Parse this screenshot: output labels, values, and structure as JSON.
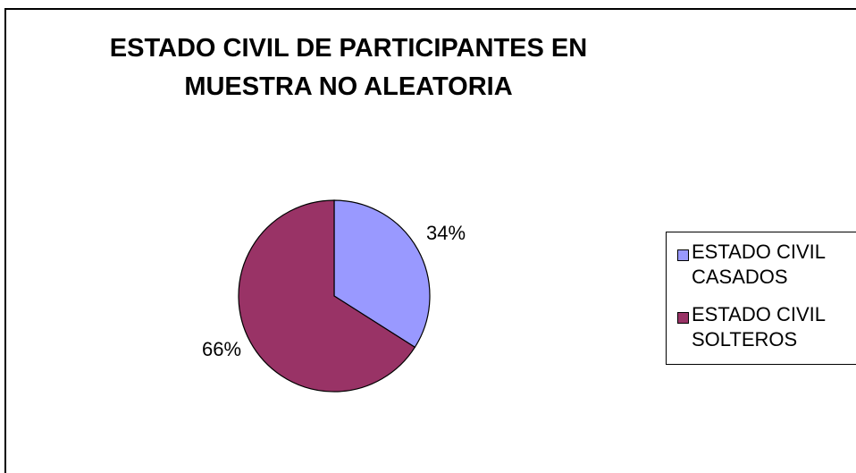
{
  "chart_data": {
    "type": "pie",
    "title_lines": [
      "ESTADO CIVIL DE PARTICIPANTES EN",
      "MUESTRA NO ALEATORIA"
    ],
    "slices": [
      {
        "legend_lines": [
          "ESTADO CIVIL",
          "CASADOS"
        ],
        "value": 34,
        "label": "34%",
        "color": "#9999FF"
      },
      {
        "legend_lines": [
          "ESTADO CIVIL",
          "SOLTEROS"
        ],
        "value": 66,
        "label": "66%",
        "color": "#993366"
      }
    ],
    "legend_position": "right"
  }
}
